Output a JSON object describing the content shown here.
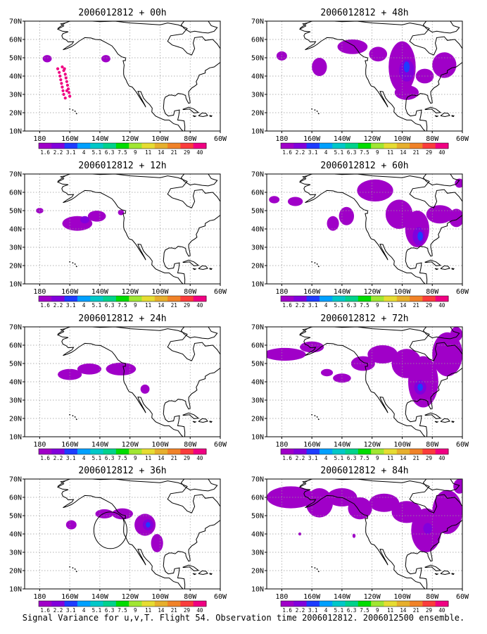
{
  "caption": "Signal Variance for u,v,T. Flight 54. Observation time 2006012812. 2006012500 ensemble.",
  "colors": {
    "ocean": "#ffffff",
    "frame": "#000000",
    "grid": "#999999",
    "coast": "#000000",
    "palette": [
      "#a000c8",
      "#8200dc",
      "#1e3cff",
      "#00a0ff",
      "#00c8c8",
      "#00d28c",
      "#00dc00",
      "#a0e632",
      "#e6dc32",
      "#e6af2d",
      "#f08228",
      "#fa3c3c",
      "#f00082"
    ]
  },
  "colorbar_labels": [
    "1.6",
    "2.2",
    "3.1",
    "4",
    "5.1",
    "6.3",
    "7.5",
    "9",
    "11",
    "14",
    "21",
    "29",
    "40"
  ],
  "chart_data": [
    {
      "type": "heatmap",
      "title": "2006012812 + 00h",
      "x_ticks": [
        "180",
        "160W",
        "140W",
        "120W",
        "100W",
        "80W",
        "60W"
      ],
      "y_ticks": [
        "10N",
        "20N",
        "30N",
        "40N",
        "50N",
        "60N",
        "70N"
      ],
      "xlim": [
        -190,
        -60
      ],
      "ylim": [
        10,
        70
      ],
      "gridlines": true,
      "regions": [
        {
          "lon": -175,
          "lat": 49.5,
          "rx": 3,
          "ry": 2,
          "level": 0
        },
        {
          "lon": -136,
          "lat": 49.5,
          "rx": 3,
          "ry": 2,
          "level": 0
        }
      ],
      "points": [
        {
          "lon": -165,
          "lat": 45
        },
        {
          "lon": -164,
          "lat": 43
        },
        {
          "lon": -163,
          "lat": 41
        },
        {
          "lon": -162.5,
          "lat": 39
        },
        {
          "lon": -162,
          "lat": 37
        },
        {
          "lon": -161.5,
          "lat": 35
        },
        {
          "lon": -161,
          "lat": 33
        },
        {
          "lon": -160.5,
          "lat": 31
        },
        {
          "lon": -160,
          "lat": 29
        },
        {
          "lon": -167,
          "lat": 42
        },
        {
          "lon": -166.5,
          "lat": 40
        },
        {
          "lon": -166,
          "lat": 38
        },
        {
          "lon": -165.5,
          "lat": 36
        },
        {
          "lon": -165,
          "lat": 34
        },
        {
          "lon": -164.5,
          "lat": 32
        },
        {
          "lon": -164,
          "lat": 30
        },
        {
          "lon": -163,
          "lat": 28
        },
        {
          "lon": -168,
          "lat": 44
        },
        {
          "lon": -163.5,
          "lat": 44
        },
        {
          "lon": -162,
          "lat": 32
        }
      ]
    },
    {
      "type": "heatmap",
      "title": "2006012812 + 48h",
      "x_ticks": [
        "180",
        "160W",
        "140W",
        "120W",
        "100W",
        "80W",
        "60W"
      ],
      "y_ticks": [
        "10N",
        "20N",
        "30N",
        "40N",
        "50N",
        "60N",
        "70N"
      ],
      "xlim": [
        -190,
        -60
      ],
      "ylim": [
        10,
        70
      ],
      "gridlines": true,
      "regions": [
        {
          "lon": -180,
          "lat": 51,
          "rx": 3.5,
          "ry": 2.5,
          "level": 0
        },
        {
          "lon": -155,
          "lat": 45,
          "rx": 5,
          "ry": 5,
          "level": 0
        },
        {
          "lon": -133,
          "lat": 56,
          "rx": 10,
          "ry": 4,
          "level": 0
        },
        {
          "lon": -116,
          "lat": 52,
          "rx": 6,
          "ry": 4,
          "level": 0
        },
        {
          "lon": -100,
          "lat": 45,
          "rx": 9,
          "ry": 14,
          "level": 0
        },
        {
          "lon": -97,
          "lat": 31,
          "rx": 8,
          "ry": 4,
          "level": 0
        },
        {
          "lon": -85,
          "lat": 40,
          "rx": 6,
          "ry": 4,
          "level": 0
        },
        {
          "lon": -72,
          "lat": 46,
          "rx": 8,
          "ry": 7,
          "level": 0
        },
        {
          "lon": -97,
          "lat": 43,
          "rx": 5,
          "ry": 6,
          "level": 1
        },
        {
          "lon": -97,
          "lat": 45,
          "rx": 2,
          "ry": 3,
          "level": 2
        }
      ],
      "points": []
    },
    {
      "type": "heatmap",
      "title": "2006012812 + 12h",
      "x_ticks": [
        "180",
        "160W",
        "140W",
        "120W",
        "100W",
        "80W",
        "60W"
      ],
      "y_ticks": [
        "10N",
        "20N",
        "30N",
        "40N",
        "50N",
        "60N",
        "70N"
      ],
      "xlim": [
        -190,
        -60
      ],
      "ylim": [
        10,
        70
      ],
      "gridlines": true,
      "regions": [
        {
          "lon": -180,
          "lat": 50,
          "rx": 2.5,
          "ry": 1.5,
          "level": 0
        },
        {
          "lon": -155,
          "lat": 43,
          "rx": 10,
          "ry": 4,
          "level": 0
        },
        {
          "lon": -142,
          "lat": 47,
          "rx": 6,
          "ry": 3,
          "level": 0
        },
        {
          "lon": -126,
          "lat": 49,
          "rx": 2,
          "ry": 1.5,
          "level": 0
        },
        {
          "lon": -150,
          "lat": 45,
          "rx": 3,
          "ry": 2,
          "level": 1
        }
      ],
      "points": []
    },
    {
      "type": "heatmap",
      "title": "2006012812 + 60h",
      "x_ticks": [
        "180",
        "160W",
        "140W",
        "120W",
        "100W",
        "80W",
        "60W"
      ],
      "y_ticks": [
        "10N",
        "20N",
        "30N",
        "40N",
        "50N",
        "60N",
        "70N"
      ],
      "xlim": [
        -190,
        -60
      ],
      "ylim": [
        10,
        70
      ],
      "gridlines": true,
      "regions": [
        {
          "lon": -185,
          "lat": 56,
          "rx": 3.5,
          "ry": 2,
          "level": 0
        },
        {
          "lon": -171,
          "lat": 55,
          "rx": 5,
          "ry": 2.5,
          "level": 0
        },
        {
          "lon": -146,
          "lat": 43,
          "rx": 4,
          "ry": 4,
          "level": 0
        },
        {
          "lon": -137,
          "lat": 47,
          "rx": 5,
          "ry": 5,
          "level": 0
        },
        {
          "lon": -118,
          "lat": 61,
          "rx": 12,
          "ry": 6,
          "level": 0
        },
        {
          "lon": -102,
          "lat": 48,
          "rx": 9,
          "ry": 8,
          "level": 0
        },
        {
          "lon": -90,
          "lat": 40,
          "rx": 8,
          "ry": 10,
          "level": 0
        },
        {
          "lon": -75,
          "lat": 48,
          "rx": 9,
          "ry": 5,
          "level": 0
        },
        {
          "lon": -64,
          "lat": 46,
          "rx": 5,
          "ry": 5,
          "level": 0
        },
        {
          "lon": -62,
          "lat": 65,
          "rx": 3,
          "ry": 2.5,
          "level": 0
        },
        {
          "lon": -89,
          "lat": 36,
          "rx": 4,
          "ry": 5,
          "level": 1
        },
        {
          "lon": -88,
          "lat": 36,
          "rx": 1.8,
          "ry": 2.5,
          "level": 2
        }
      ],
      "points": []
    },
    {
      "type": "heatmap",
      "title": "2006012812 + 24h",
      "x_ticks": [
        "180",
        "160W",
        "140W",
        "120W",
        "100W",
        "80W",
        "60W"
      ],
      "y_ticks": [
        "10N",
        "20N",
        "30N",
        "40N",
        "50N",
        "60N",
        "70N"
      ],
      "xlim": [
        -190,
        -60
      ],
      "ylim": [
        10,
        70
      ],
      "gridlines": true,
      "regions": [
        {
          "lon": -160,
          "lat": 44,
          "rx": 8,
          "ry": 3,
          "level": 0
        },
        {
          "lon": -147,
          "lat": 47,
          "rx": 8,
          "ry": 3,
          "level": 0
        },
        {
          "lon": -126,
          "lat": 47,
          "rx": 10,
          "ry": 3.5,
          "level": 0
        },
        {
          "lon": -110,
          "lat": 36,
          "rx": 3,
          "ry": 2.5,
          "level": 0
        }
      ],
      "points": []
    },
    {
      "type": "heatmap",
      "title": "2006012812 + 72h",
      "x_ticks": [
        "180",
        "160W",
        "140W",
        "120W",
        "100W",
        "80W",
        "60W"
      ],
      "y_ticks": [
        "10N",
        "20N",
        "30N",
        "40N",
        "50N",
        "60N",
        "70N"
      ],
      "xlim": [
        -190,
        -60
      ],
      "ylim": [
        10,
        70
      ],
      "gridlines": true,
      "regions": [
        {
          "lon": -178,
          "lat": 55,
          "rx": 14,
          "ry": 3.5,
          "level": 0
        },
        {
          "lon": -160,
          "lat": 59,
          "rx": 8,
          "ry": 3,
          "level": 0
        },
        {
          "lon": -150,
          "lat": 45,
          "rx": 4,
          "ry": 2,
          "level": 0
        },
        {
          "lon": -140,
          "lat": 42,
          "rx": 6,
          "ry": 2.5,
          "level": 0
        },
        {
          "lon": -126,
          "lat": 50,
          "rx": 8,
          "ry": 4,
          "level": 0
        },
        {
          "lon": -113,
          "lat": 55,
          "rx": 10,
          "ry": 5,
          "level": 0
        },
        {
          "lon": -97,
          "lat": 50,
          "rx": 10,
          "ry": 8,
          "level": 0
        },
        {
          "lon": -86,
          "lat": 40,
          "rx": 10,
          "ry": 14,
          "level": 0
        },
        {
          "lon": -70,
          "lat": 55,
          "rx": 10,
          "ry": 12,
          "level": 0
        },
        {
          "lon": -64,
          "lat": 66,
          "rx": 4,
          "ry": 4,
          "level": 0
        },
        {
          "lon": -88,
          "lat": 37,
          "rx": 4,
          "ry": 4,
          "level": 1
        },
        {
          "lon": -88,
          "lat": 37,
          "rx": 1.8,
          "ry": 2,
          "level": 2
        }
      ],
      "points": []
    },
    {
      "type": "heatmap",
      "title": "2006012812 + 36h",
      "x_ticks": [
        "180",
        "160W",
        "140W",
        "120W",
        "100W",
        "80W",
        "60W"
      ],
      "y_ticks": [
        "10N",
        "20N",
        "30N",
        "40N",
        "50N",
        "60N",
        "70N"
      ],
      "xlim": [
        -190,
        -60
      ],
      "ylim": [
        10,
        70
      ],
      "gridlines": true,
      "regions": [
        {
          "lon": -159,
          "lat": 45,
          "rx": 3.5,
          "ry": 2.5,
          "level": 0
        },
        {
          "lon": -137,
          "lat": 51,
          "rx": 6,
          "ry": 2.5,
          "level": 0
        },
        {
          "lon": -125,
          "lat": 51,
          "rx": 7,
          "ry": 3,
          "level": 0
        },
        {
          "lon": -110,
          "lat": 45,
          "rx": 7,
          "ry": 6,
          "level": 0
        },
        {
          "lon": -102,
          "lat": 35,
          "rx": 4,
          "ry": 5,
          "level": 0
        },
        {
          "lon": -108,
          "lat": 45,
          "rx": 3.5,
          "ry": 3,
          "level": 1
        },
        {
          "lon": -108,
          "lat": 45,
          "rx": 1.5,
          "ry": 1.5,
          "level": 2
        }
      ],
      "points": []
    },
    {
      "type": "heatmap",
      "title": "2006012812 + 84h",
      "x_ticks": [
        "180",
        "160W",
        "140W",
        "120W",
        "100W",
        "80W",
        "60W"
      ],
      "y_ticks": [
        "10N",
        "20N",
        "30N",
        "40N",
        "50N",
        "60N",
        "70N"
      ],
      "xlim": [
        -190,
        -60
      ],
      "ylim": [
        10,
        70
      ],
      "gridlines": true,
      "regions": [
        {
          "lon": -174,
          "lat": 60,
          "rx": 16,
          "ry": 6,
          "level": 0
        },
        {
          "lon": -155,
          "lat": 57,
          "rx": 9,
          "ry": 8,
          "level": 0
        },
        {
          "lon": -140,
          "lat": 60,
          "rx": 10,
          "ry": 5,
          "level": 0
        },
        {
          "lon": -128,
          "lat": 54,
          "rx": 8,
          "ry": 6,
          "level": 0
        },
        {
          "lon": -112,
          "lat": 57,
          "rx": 10,
          "ry": 5,
          "level": 0
        },
        {
          "lon": -97,
          "lat": 52,
          "rx": 10,
          "ry": 6,
          "level": 0
        },
        {
          "lon": -84,
          "lat": 42,
          "rx": 10,
          "ry": 12,
          "level": 0
        },
        {
          "lon": -70,
          "lat": 52,
          "rx": 10,
          "ry": 12,
          "level": 0
        },
        {
          "lon": -62,
          "lat": 66,
          "rx": 4,
          "ry": 4,
          "level": 0
        },
        {
          "lon": -168,
          "lat": 40,
          "rx": 1,
          "ry": 0.8,
          "level": 0
        },
        {
          "lon": -132,
          "lat": 39,
          "rx": 1,
          "ry": 1.2,
          "level": 0
        },
        {
          "lon": -83,
          "lat": 43,
          "rx": 3,
          "ry": 3,
          "level": 1
        }
      ],
      "points": []
    }
  ]
}
